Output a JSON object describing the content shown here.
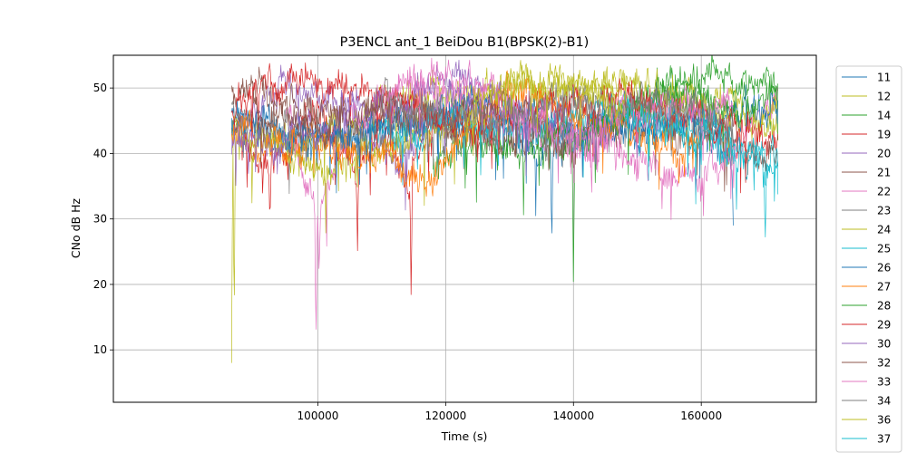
{
  "chart_data": {
    "type": "line",
    "title": "P3ENCL ant_1 BeiDou B1(BPSK(2)-B1)",
    "xlabel": "Time (s)",
    "ylabel": "CNo dB Hz",
    "xlim": [
      68000,
      178000
    ],
    "ylim": [
      2,
      55
    ],
    "x_ticks": [
      100000,
      120000,
      140000,
      160000
    ],
    "x_tick_labels": [
      "100000",
      "120000",
      "140000",
      "160000"
    ],
    "y_ticks": [
      10,
      20,
      30,
      40,
      50
    ],
    "y_tick_labels": [
      "10",
      "20",
      "30",
      "40",
      "50"
    ],
    "grid": true,
    "legend_position": "right, outside plot (partially cut off)",
    "series": [
      {
        "name": "11",
        "color": "#1f77b4",
        "x": [
          86500,
          95000,
          110000,
          125000,
          135000,
          150000,
          160000,
          165000
        ],
        "y": [
          47,
          42,
          44,
          46,
          41,
          45,
          44,
          40
        ],
        "spikes": [
          [
            136600,
            25
          ],
          [
            165000,
            29
          ]
        ]
      },
      {
        "name": "12",
        "color": "#bcbd22",
        "x": [
          86500,
          97000,
          108000,
          120000,
          135000,
          145000,
          160000,
          172000
        ],
        "y": [
          44,
          40,
          46,
          49,
          51,
          50,
          46,
          44
        ],
        "spikes": [
          [
            86500,
            8
          ],
          [
            86900,
            12
          ]
        ]
      },
      {
        "name": "14",
        "color": "#2ca02c",
        "x": [
          118000,
          125000,
          135000,
          145000,
          155000,
          165000,
          172000
        ],
        "y": [
          38,
          42,
          40,
          43,
          51,
          51,
          50
        ],
        "spikes": [
          [
            140000,
            20
          ]
        ]
      },
      {
        "name": "19",
        "color": "#d62728",
        "x": [
          86500,
          92000,
          100000,
          106000,
          110000,
          114000,
          118000
        ],
        "y": [
          44,
          38,
          46,
          39,
          45,
          36,
          44
        ],
        "spikes": [
          [
            92500,
            29
          ],
          [
            106200,
            24
          ],
          [
            114600,
            17
          ]
        ]
      },
      {
        "name": "20",
        "color": "#9467bd",
        "x": [
          86500,
          95000,
          105000,
          112000,
          122000,
          130000
        ],
        "y": [
          42,
          51,
          47,
          38,
          51,
          48
        ],
        "spikes": []
      },
      {
        "name": "21",
        "color": "#8c564b",
        "x": [
          86500,
          95000,
          105000,
          115000,
          125000,
          135000,
          150000,
          165000,
          172000
        ],
        "y": [
          51,
          48,
          44,
          47,
          42,
          43,
          45,
          42,
          40
        ],
        "spikes": []
      },
      {
        "name": "22",
        "color": "#e377c2",
        "x": [
          95000,
          100000,
          105000,
          115000,
          125000,
          145000,
          160000,
          172000
        ],
        "y": [
          47,
          30,
          46,
          50,
          47,
          41,
          36,
          48
        ],
        "spikes": [
          [
            99700,
            10
          ],
          [
            100200,
            21
          ]
        ]
      },
      {
        "name": "23",
        "color": "#7f7f7f",
        "x": [
          86500,
          100000,
          115000,
          130000,
          150000,
          165000
        ],
        "y": [
          46,
          43,
          42,
          44,
          48,
          45
        ],
        "spikes": []
      },
      {
        "name": "24",
        "color": "#bcbd22",
        "x": [
          86500,
          100000,
          120000,
          135000,
          150000,
          172000
        ],
        "y": [
          44,
          38,
          44,
          50,
          51,
          46
        ],
        "spikes": []
      },
      {
        "name": "25",
        "color": "#17becf",
        "x": [
          108000,
          120000,
          135000,
          150000,
          160000,
          172000
        ],
        "y": [
          43,
          45,
          44,
          47,
          43,
          37
        ],
        "spikes": [
          [
            170000,
            26
          ]
        ]
      },
      {
        "name": "26",
        "color": "#1f77b4",
        "x": [
          86500,
          100000,
          120000,
          140000,
          155000,
          172000
        ],
        "y": [
          46,
          42,
          47,
          44,
          44,
          47
        ],
        "spikes": []
      },
      {
        "name": "27",
        "color": "#ff7f0e",
        "x": [
          86500,
          90000,
          105000,
          118000,
          130000,
          145000,
          160000
        ],
        "y": [
          44,
          42,
          40,
          37,
          49,
          44,
          40
        ],
        "spikes": []
      },
      {
        "name": "28",
        "color": "#2ca02c",
        "x": [
          135000,
          145000,
          155000,
          165000,
          172000
        ],
        "y": [
          42,
          44,
          49,
          47,
          50
        ],
        "spikes": []
      },
      {
        "name": "29",
        "color": "#d62728",
        "x": [
          86500,
          95000,
          105000,
          115000,
          125000,
          140000,
          150000,
          160000,
          172000
        ],
        "y": [
          47,
          50,
          51,
          46,
          44,
          49,
          47,
          45,
          42
        ],
        "spikes": []
      },
      {
        "name": "30",
        "color": "#9467bd",
        "x": [
          86500,
          100000,
          110000,
          120000,
          130000,
          145000
        ],
        "y": [
          41,
          44,
          47,
          50,
          46,
          43
        ],
        "spikes": []
      },
      {
        "name": "32",
        "color": "#8c564b",
        "x": [
          90000,
          100000,
          110000,
          120000,
          130000,
          140000
        ],
        "y": [
          46,
          44,
          48,
          44,
          48,
          40
        ],
        "spikes": []
      },
      {
        "name": "33",
        "color": "#e377c2",
        "x": [
          110000,
          115000,
          125000,
          140000,
          155000,
          165000
        ],
        "y": [
          50,
          52,
          50,
          43,
          47,
          48
        ],
        "spikes": []
      },
      {
        "name": "34",
        "color": "#7f7f7f",
        "x": [
          110000,
          120000,
          135000,
          150000,
          165000
        ],
        "y": [
          48,
          45,
          47,
          49,
          44
        ],
        "spikes": []
      },
      {
        "name": "36",
        "color": "#bcbd22",
        "x": [
          123000,
          130000,
          138000,
          148000
        ],
        "y": [
          46,
          51,
          51,
          48
        ],
        "spikes": []
      },
      {
        "name": "37",
        "color": "#17becf",
        "x": [
          148000,
          155000,
          162000,
          168000,
          172000
        ],
        "y": [
          46,
          44,
          43,
          40,
          42
        ],
        "spikes": []
      }
    ]
  }
}
